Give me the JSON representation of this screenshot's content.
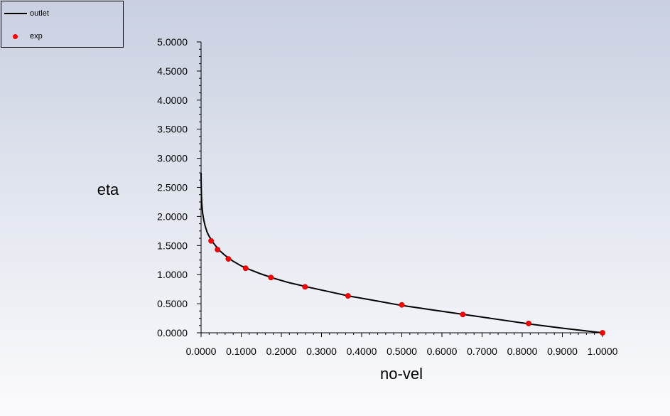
{
  "chart_data": {
    "type": "line",
    "xlabel": "no-vel",
    "ylabel": "eta",
    "xlim": [
      0,
      1
    ],
    "ylim": [
      0,
      5
    ],
    "x_ticks": [
      "0.0000",
      "0.1000",
      "0.2000",
      "0.3000",
      "0.4000",
      "0.5000",
      "0.6000",
      "0.7000",
      "0.8000",
      "0.9000",
      "1.0000"
    ],
    "y_ticks": [
      "0.0000",
      "0.5000",
      "1.0000",
      "1.5000",
      "2.0000",
      "2.5000",
      "3.0000",
      "3.5000",
      "4.0000",
      "4.5000",
      "5.0000"
    ],
    "grid": false,
    "legend_position": "top-left",
    "series": [
      {
        "name": "outlet",
        "style": "line",
        "color": "#000000",
        "x": [
          0.0,
          0.0003,
          0.001,
          0.002,
          0.004,
          0.007,
          0.01,
          0.015,
          0.02,
          0.03,
          0.045,
          0.06,
          0.08,
          0.1,
          0.12,
          0.15,
          0.18,
          0.22,
          0.27,
          0.33,
          0.37,
          0.42,
          0.5,
          0.58,
          0.66,
          0.74,
          0.82,
          0.9,
          1.0
        ],
        "y": [
          2.75,
          2.55,
          2.35,
          2.2,
          2.05,
          1.93,
          1.84,
          1.73,
          1.66,
          1.55,
          1.42,
          1.33,
          1.23,
          1.15,
          1.09,
          1.01,
          0.94,
          0.86,
          0.78,
          0.69,
          0.63,
          0.57,
          0.47,
          0.39,
          0.31,
          0.23,
          0.15,
          0.08,
          0.0
        ]
      },
      {
        "name": "exp",
        "style": "scatter",
        "color": "#ff0000",
        "x": [
          0.025,
          0.041,
          0.068,
          0.111,
          0.174,
          0.259,
          0.366,
          0.5,
          0.652,
          0.816,
          1.0
        ],
        "y": [
          1.58,
          1.43,
          1.27,
          1.11,
          0.95,
          0.79,
          0.635,
          0.48,
          0.315,
          0.16,
          0.0
        ]
      }
    ]
  }
}
